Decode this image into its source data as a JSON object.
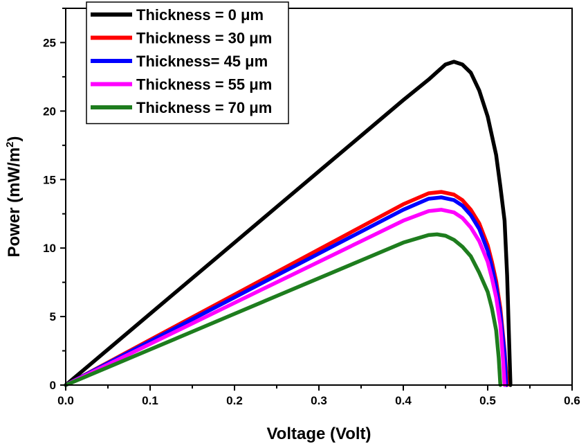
{
  "chart_data": {
    "type": "line",
    "xlabel": "Voltage (Volt)",
    "ylabel_main": "Power (mW/m",
    "ylabel_sup": "2",
    "ylabel_close": ")",
    "xlim": [
      0.0,
      0.6
    ],
    "ylim": [
      0,
      27.5
    ],
    "xticks": [
      "0.0",
      "0.1",
      "0.2",
      "0.3",
      "0.4",
      "0.5",
      "0.6"
    ],
    "xtick_values": [
      0.0,
      0.1,
      0.2,
      0.3,
      0.4,
      0.5,
      0.6
    ],
    "yticks": [
      "0",
      "5",
      "10",
      "15",
      "20",
      "25"
    ],
    "ytick_values": [
      0,
      5,
      10,
      15,
      20,
      25
    ],
    "grid": false,
    "legend_position": "top-left",
    "series": [
      {
        "name": "Thickness = 0 μm",
        "color": "#000000",
        "points": [
          [
            0.0,
            0
          ],
          [
            0.05,
            2.6
          ],
          [
            0.1,
            5.2
          ],
          [
            0.15,
            7.8
          ],
          [
            0.2,
            10.4
          ],
          [
            0.25,
            13.0
          ],
          [
            0.3,
            15.6
          ],
          [
            0.35,
            18.2
          ],
          [
            0.4,
            20.8
          ],
          [
            0.43,
            22.3
          ],
          [
            0.45,
            23.4
          ],
          [
            0.46,
            23.6
          ],
          [
            0.47,
            23.4
          ],
          [
            0.48,
            22.8
          ],
          [
            0.49,
            21.5
          ],
          [
            0.5,
            19.6
          ],
          [
            0.51,
            16.8
          ],
          [
            0.515,
            14.5
          ],
          [
            0.52,
            12.0
          ],
          [
            0.523,
            8.0
          ],
          [
            0.525,
            4.0
          ],
          [
            0.527,
            0
          ]
        ]
      },
      {
        "name": "Thickness = 30 μm",
        "color": "#ff0000",
        "points": [
          [
            0.0,
            0
          ],
          [
            0.05,
            1.65
          ],
          [
            0.1,
            3.3
          ],
          [
            0.15,
            4.95
          ],
          [
            0.2,
            6.6
          ],
          [
            0.25,
            8.25
          ],
          [
            0.3,
            9.9
          ],
          [
            0.35,
            11.55
          ],
          [
            0.4,
            13.2
          ],
          [
            0.43,
            14.0
          ],
          [
            0.445,
            14.1
          ],
          [
            0.46,
            13.9
          ],
          [
            0.47,
            13.5
          ],
          [
            0.48,
            12.8
          ],
          [
            0.49,
            11.8
          ],
          [
            0.5,
            10.2
          ],
          [
            0.505,
            9.0
          ],
          [
            0.51,
            7.6
          ],
          [
            0.515,
            5.6
          ],
          [
            0.52,
            2.5
          ],
          [
            0.523,
            0
          ]
        ]
      },
      {
        "name": "Thickness= 45 μm",
        "color": "#0000ff",
        "points": [
          [
            0.0,
            0
          ],
          [
            0.05,
            1.6
          ],
          [
            0.1,
            3.2
          ],
          [
            0.15,
            4.8
          ],
          [
            0.2,
            6.4
          ],
          [
            0.25,
            8.0
          ],
          [
            0.3,
            9.6
          ],
          [
            0.35,
            11.2
          ],
          [
            0.4,
            12.8
          ],
          [
            0.43,
            13.6
          ],
          [
            0.445,
            13.7
          ],
          [
            0.46,
            13.5
          ],
          [
            0.47,
            13.1
          ],
          [
            0.48,
            12.4
          ],
          [
            0.49,
            11.4
          ],
          [
            0.5,
            9.8
          ],
          [
            0.505,
            8.6
          ],
          [
            0.51,
            7.2
          ],
          [
            0.515,
            5.2
          ],
          [
            0.52,
            2.3
          ],
          [
            0.522,
            0
          ]
        ]
      },
      {
        "name": "Thickness = 55 μm",
        "color": "#ff00ff",
        "points": [
          [
            0.0,
            0
          ],
          [
            0.05,
            1.5
          ],
          [
            0.1,
            3.0
          ],
          [
            0.15,
            4.5
          ],
          [
            0.2,
            6.0
          ],
          [
            0.25,
            7.5
          ],
          [
            0.3,
            9.0
          ],
          [
            0.35,
            10.5
          ],
          [
            0.4,
            12.0
          ],
          [
            0.43,
            12.7
          ],
          [
            0.445,
            12.8
          ],
          [
            0.46,
            12.6
          ],
          [
            0.47,
            12.2
          ],
          [
            0.48,
            11.5
          ],
          [
            0.49,
            10.5
          ],
          [
            0.5,
            9.0
          ],
          [
            0.505,
            7.8
          ],
          [
            0.51,
            6.4
          ],
          [
            0.515,
            4.4
          ],
          [
            0.518,
            2.0
          ],
          [
            0.52,
            0
          ]
        ]
      },
      {
        "name": "Thickness = 70 μm",
        "color": "#1e7d1e",
        "points": [
          [
            0.0,
            0
          ],
          [
            0.05,
            1.3
          ],
          [
            0.1,
            2.6
          ],
          [
            0.15,
            3.9
          ],
          [
            0.2,
            5.2
          ],
          [
            0.25,
            6.5
          ],
          [
            0.3,
            7.8
          ],
          [
            0.35,
            9.1
          ],
          [
            0.4,
            10.4
          ],
          [
            0.43,
            10.95
          ],
          [
            0.44,
            11.0
          ],
          [
            0.45,
            10.9
          ],
          [
            0.46,
            10.6
          ],
          [
            0.47,
            10.1
          ],
          [
            0.48,
            9.4
          ],
          [
            0.49,
            8.2
          ],
          [
            0.5,
            6.8
          ],
          [
            0.505,
            5.6
          ],
          [
            0.51,
            4.0
          ],
          [
            0.513,
            2.0
          ],
          [
            0.515,
            0
          ]
        ]
      }
    ]
  }
}
